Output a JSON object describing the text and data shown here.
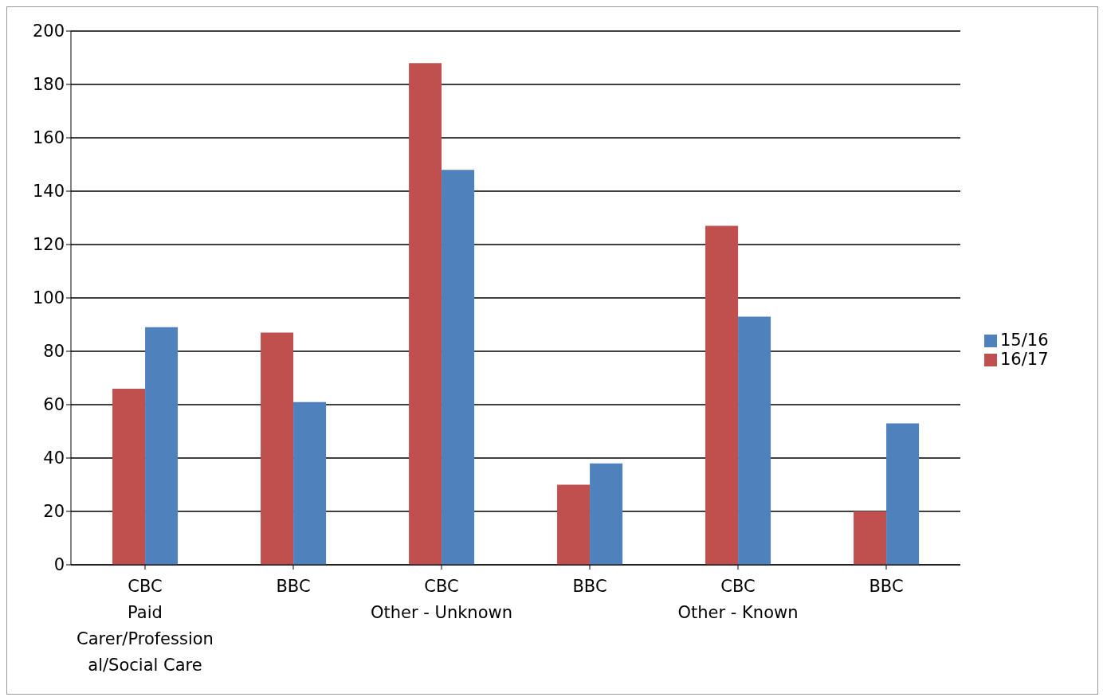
{
  "chart_data": {
    "type": "bar",
    "categories": [
      "CBC\nPaid Carer/Professional/Social Care",
      "BBC",
      "CBC\nOther - Unknown",
      "BBC",
      "CBC\nOther - Known",
      "BBC"
    ],
    "series": [
      {
        "name": "16/17",
        "color": "#c0504d",
        "values": [
          66,
          87,
          188,
          30,
          127,
          20
        ]
      },
      {
        "name": "15/16",
        "color": "#4f81bd",
        "values": [
          89,
          61,
          148,
          38,
          93,
          53
        ]
      }
    ],
    "ylim": [
      0,
      200
    ],
    "yticks": [
      0,
      20,
      40,
      60,
      80,
      100,
      120,
      140,
      160,
      180,
      200
    ],
    "grid": "y",
    "legend": "right"
  }
}
